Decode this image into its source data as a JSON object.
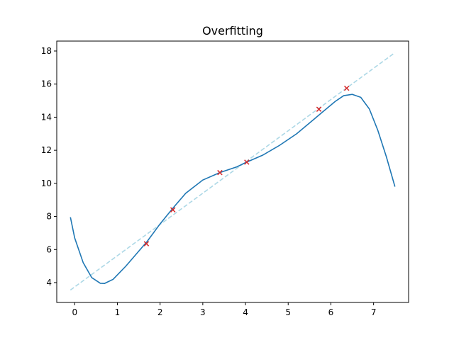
{
  "chart_data": {
    "type": "line",
    "title": "Overfitting",
    "xlabel": "",
    "ylabel": "",
    "xlim": [
      -0.42,
      7.82
    ],
    "ylim": [
      2.8,
      18.6
    ],
    "xticks": [
      0,
      1,
      2,
      3,
      4,
      5,
      6,
      7
    ],
    "yticks": [
      4,
      6,
      8,
      10,
      12,
      14,
      16,
      18
    ],
    "grid": false,
    "series": [
      {
        "kind": "line",
        "style": "dashed",
        "color": "#add8e6",
        "x": [
          -0.1,
          7.5
        ],
        "y": [
          3.55,
          17.9
        ]
      },
      {
        "kind": "line",
        "style": "solid",
        "color": "#1f77b4",
        "x": [
          -0.1,
          0.0,
          0.2,
          0.4,
          0.6,
          0.7,
          0.9,
          1.2,
          1.5,
          1.7,
          2.0,
          2.3,
          2.6,
          3.0,
          3.4,
          3.8,
          4.0,
          4.4,
          4.8,
          5.2,
          5.5,
          5.8,
          6.1,
          6.3,
          6.5,
          6.7,
          6.9,
          7.1,
          7.3,
          7.5
        ],
        "y": [
          7.95,
          6.7,
          5.2,
          4.3,
          3.96,
          3.95,
          4.2,
          5.0,
          5.9,
          6.5,
          7.55,
          8.5,
          9.4,
          10.2,
          10.65,
          11.0,
          11.25,
          11.7,
          12.3,
          13.0,
          13.65,
          14.3,
          14.95,
          15.3,
          15.38,
          15.2,
          14.5,
          13.2,
          11.6,
          9.8
        ]
      },
      {
        "kind": "scatter",
        "marker": "x",
        "color": "#d62728",
        "x": [
          1.68,
          2.3,
          3.4,
          4.03,
          5.72,
          6.37
        ],
        "y": [
          6.35,
          8.4,
          10.65,
          11.28,
          14.48,
          15.75
        ]
      }
    ]
  }
}
